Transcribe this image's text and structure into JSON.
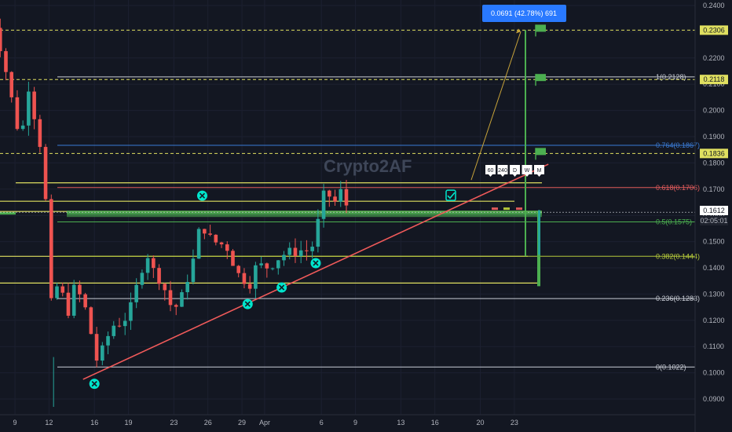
{
  "watermark": "Crypto2AF",
  "measure_label": "0.0691 (42.78%) 691",
  "price_label": "0.1612",
  "countdown": "02:05:01",
  "timeframes": [
    "60",
    "240",
    "D",
    "W",
    "M"
  ],
  "colors": {
    "bg": "#131722",
    "up": "#26a69a",
    "down": "#ef5350",
    "green": "#4caf50",
    "trend": "#f05a5a",
    "yellow": "#e0e060",
    "fib": "#c9cdd6",
    "fib764": "#3a7bd5",
    "fib618": "#e15b5b",
    "fib5": "#4caf50",
    "fib382": "#b5c93a",
    "marker": "#00e5cc",
    "measure": "#2979ff"
  },
  "chart_data": {
    "type": "candlestick",
    "yaxis": {
      "min": 0.085,
      "max": 0.2415,
      "ticks": [
        "0.0900",
        "0.1000",
        "0.1100",
        "0.1200",
        "0.1300",
        "0.1400",
        "0.1500",
        "0.1600",
        "0.1700",
        "0.1800",
        "0.1900",
        "0.2000",
        "0.2100",
        "0.2200",
        "0.2300",
        "0.2400"
      ]
    },
    "xticks": [
      {
        "label": "9",
        "day": -31
      },
      {
        "label": "12",
        "day": -28
      },
      {
        "label": "16",
        "day": -24
      },
      {
        "label": "19",
        "day": -21
      },
      {
        "label": "23",
        "day": -17
      },
      {
        "label": "26",
        "day": -14
      },
      {
        "label": "29",
        "day": -11
      },
      {
        "label": "Apr",
        "day": -9
      },
      {
        "label": "6",
        "day": -4
      },
      {
        "label": "9",
        "day": -1
      },
      {
        "label": "13",
        "day": 3
      },
      {
        "label": "16",
        "day": 6
      },
      {
        "label": "20",
        "day": 10
      },
      {
        "label": "23",
        "day": 13
      }
    ],
    "price_path": [
      [
        -33.3,
        0.24
      ],
      [
        -32.5,
        0.228
      ],
      [
        -31.8,
        0.215
      ],
      [
        -31,
        0.198
      ],
      [
        -30.5,
        0.188
      ],
      [
        -29.8,
        0.209
      ],
      [
        -29.2,
        0.196
      ],
      [
        -28.6,
        0.183
      ],
      [
        -28,
        0.148
      ],
      [
        -27.6,
        0.105
      ],
      [
        -27.2,
        0.142
      ],
      [
        -26.5,
        0.12
      ],
      [
        -25.8,
        0.132
      ],
      [
        -25,
        0.128
      ],
      [
        -24.4,
        0.117
      ],
      [
        -23.7,
        0.103
      ],
      [
        -23.2,
        0.11
      ],
      [
        -22.4,
        0.118
      ],
      [
        -21.7,
        0.119
      ],
      [
        -21,
        0.122
      ],
      [
        -20,
        0.137
      ],
      [
        -19.4,
        0.146
      ],
      [
        -18.8,
        0.139
      ],
      [
        -18,
        0.134
      ],
      [
        -17.3,
        0.126
      ],
      [
        -16.6,
        0.125
      ],
      [
        -15.8,
        0.136
      ],
      [
        -15,
        0.147
      ],
      [
        -14.6,
        0.16
      ],
      [
        -14.2,
        0.153
      ],
      [
        -13.5,
        0.15
      ],
      [
        -12.8,
        0.149
      ],
      [
        -12.1,
        0.147
      ],
      [
        -11.6,
        0.139
      ],
      [
        -11,
        0.136
      ],
      [
        -10.3,
        0.134
      ],
      [
        -9.8,
        0.14
      ],
      [
        -9.2,
        0.141
      ],
      [
        -8.6,
        0.14
      ],
      [
        -8,
        0.143
      ],
      [
        -7.4,
        0.145
      ],
      [
        -6.8,
        0.146
      ],
      [
        -6.2,
        0.146
      ],
      [
        -5.6,
        0.147
      ],
      [
        -5,
        0.146
      ],
      [
        -4.5,
        0.152
      ],
      [
        -4.1,
        0.163
      ],
      [
        -3.7,
        0.169
      ],
      [
        -3.2,
        0.167
      ],
      [
        -2.8,
        0.165
      ],
      [
        -2.3,
        0.169
      ],
      [
        -1.8,
        0.164
      ],
      [
        -1.3,
        0.163
      ]
    ],
    "fib_levels": [
      {
        "label": "1(0.2128)",
        "value": 0.2128
      },
      {
        "label": "0.764(0.1867)",
        "value": 0.1867
      },
      {
        "label": "0.618(0.1706)",
        "value": 0.1706
      },
      {
        "label": "0.5(0.1575)",
        "value": 0.1575
      },
      {
        "label": "0.382(0.1444)",
        "value": 0.1444
      },
      {
        "label": "0.236(0.1283)",
        "value": 0.1283
      },
      {
        "label": "0(0.1022)",
        "value": 0.1022
      }
    ],
    "targets": [
      {
        "label": "0.2306",
        "value": 0.2306
      },
      {
        "label": "0.2118",
        "value": 0.2118
      },
      {
        "label": "0.1836",
        "value": 0.1836
      }
    ],
    "trendline": [
      [
        -25,
        0.0975
      ],
      [
        16,
        0.1795
      ]
    ],
    "horizontal_levels": [
      0.1724,
      0.1654,
      0.1615,
      0.1606,
      0.1606
    ],
    "markers": [
      {
        "day": -24,
        "value": 0.0958
      },
      {
        "day": -14.5,
        "value": 0.1675
      },
      {
        "day": -10.5,
        "value": 0.1262
      },
      {
        "day": -7.5,
        "value": 0.1325
      },
      {
        "day": -4.5,
        "value": 0.1418
      }
    ]
  }
}
